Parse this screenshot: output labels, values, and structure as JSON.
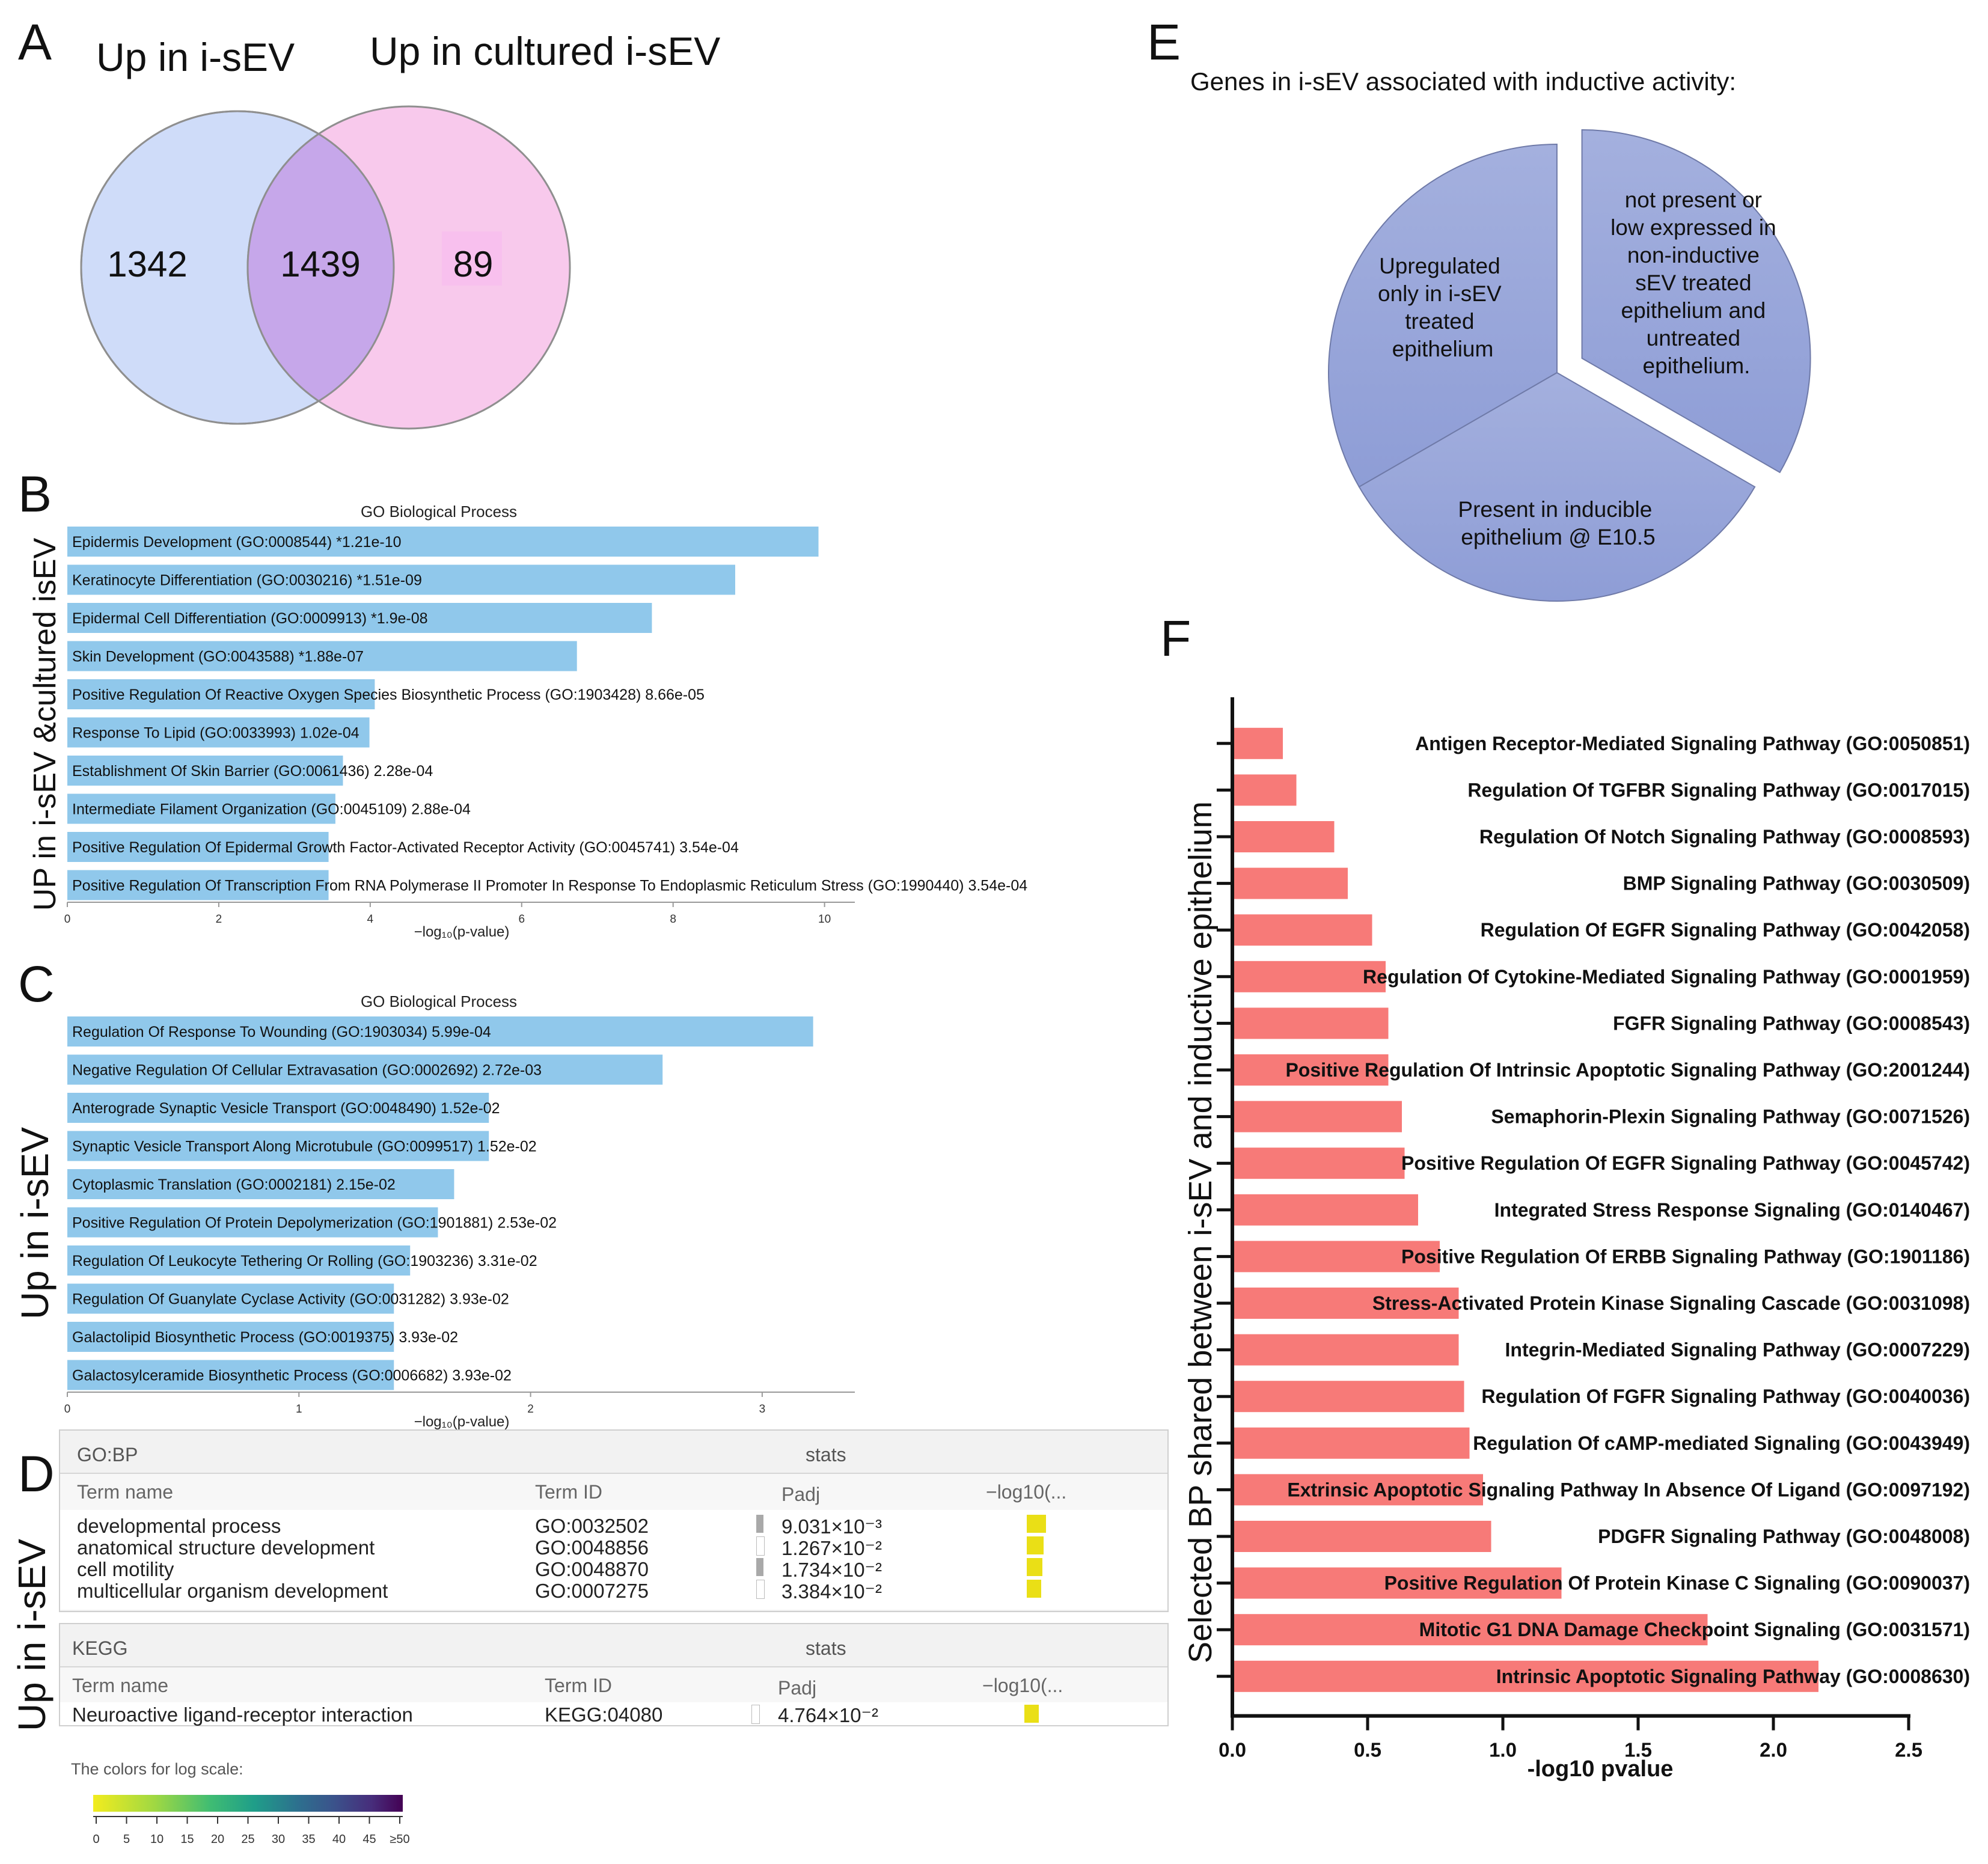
{
  "panel_letters": {
    "A": "A",
    "B": "B",
    "C": "C",
    "D": "D",
    "E": "E",
    "F": "F"
  },
  "colors": {
    "bar_blue": "#90c8eb",
    "bar_red": "#f77a78",
    "venn_left": "#cfdcf9",
    "venn_right": "#f8c9ec",
    "venn_overlap": "#c6a7ea",
    "pie": "#98a6d8"
  },
  "venn": {
    "left_label": "Up in i-sEV",
    "right_label": "Up in cultured i-sEV",
    "left_only": "1342",
    "overlap": "1439",
    "right_only": "89"
  },
  "panel_b": {
    "side_label": "UP in i-sEV &cultured isEV",
    "title": "GO Biological Process",
    "xlabel": "−log₁₀(p-value)",
    "ticks": [
      "0",
      "2",
      "4",
      "6",
      "8",
      "10"
    ],
    "terms": [
      {
        "name": "Epidermis Development (GO:0008544)",
        "p": "*1.21e-10"
      },
      {
        "name": "Keratinocyte Differentiation (GO:0030216)",
        "p": "*1.51e-09"
      },
      {
        "name": "Epidermal Cell Differentiation (GO:0009913)",
        "p": "*1.9e-08"
      },
      {
        "name": "Skin Development (GO:0043588)",
        "p": "*1.88e-07"
      },
      {
        "name": "Positive Regulation Of Reactive Oxygen Species Biosynthetic Process (GO:1903428)",
        "p": "8.66e-05"
      },
      {
        "name": "Response To Lipid (GO:0033993)",
        "p": "1.02e-04"
      },
      {
        "name": "Establishment Of Skin Barrier (GO:0061436)",
        "p": "2.28e-04"
      },
      {
        "name": "Intermediate Filament Organization (GO:0045109)",
        "p": "2.88e-04"
      },
      {
        "name": "Positive Regulation Of Epidermal Growth Factor-Activated Receptor Activity (GO:0045741)",
        "p": "3.54e-04"
      },
      {
        "name": "Positive Regulation Of Transcription From RNA Polymerase II Promoter In Response To Endoplasmic Reticulum Stress (GO:1990440)",
        "p": "3.54e-04"
      }
    ]
  },
  "panel_c": {
    "side_label": "Up in i-sEV",
    "title": "GO Biological Process",
    "xlabel": "−log₁₀(p-value)",
    "ticks": [
      "0",
      "1",
      "2",
      "3"
    ],
    "terms": [
      {
        "name": "Regulation Of Response To Wounding (GO:1903034)",
        "p": "5.99e-04"
      },
      {
        "name": "Negative Regulation Of Cellular Extravasation (GO:0002692)",
        "p": "2.72e-03"
      },
      {
        "name": "Anterograde Synaptic Vesicle Transport (GO:0048490)",
        "p": "1.52e-02"
      },
      {
        "name": "Synaptic Vesicle Transport Along Microtubule (GO:0099517)",
        "p": "1.52e-02"
      },
      {
        "name": "Cytoplasmic Translation (GO:0002181)",
        "p": "2.15e-02"
      },
      {
        "name": "Positive Regulation Of Protein Depolymerization (GO:1901881)",
        "p": "2.53e-02"
      },
      {
        "name": "Regulation Of Leukocyte Tethering Or Rolling (GO:1903236)",
        "p": "3.31e-02"
      },
      {
        "name": "Regulation Of Guanylate Cyclase Activity (GO:0031282)",
        "p": "3.93e-02"
      },
      {
        "name": "Galactolipid Biosynthetic Process (GO:0019375)",
        "p": "3.93e-02"
      },
      {
        "name": "Galactosylceramide Biosynthetic Process (GO:0006682)",
        "p": "3.93e-02"
      }
    ]
  },
  "panel_d": {
    "side_label": "Up in i-sEV",
    "gobp": {
      "source": "GO:BP",
      "stats": "stats",
      "col_term": "Term name",
      "col_id": "Term ID",
      "col_padj": "Padj",
      "col_log": "−log10(...",
      "rows": [
        {
          "term": "developmental process",
          "id": "GO:0032502",
          "padj": "9.031×10⁻³"
        },
        {
          "term": "anatomical structure development",
          "id": "GO:0048856",
          "padj": "1.267×10⁻²"
        },
        {
          "term": "cell motility",
          "id": "GO:0048870",
          "padj": "1.734×10⁻²"
        },
        {
          "term": "multicellular organism development",
          "id": "GO:0007275",
          "padj": "3.384×10⁻²"
        }
      ]
    },
    "kegg": {
      "source": "KEGG",
      "stats": "stats",
      "col_term": "Term name",
      "col_id": "Term ID",
      "col_padj": "Padj",
      "col_log": "−log10(...",
      "rows": [
        {
          "term": "Neuroactive ligand-receptor interaction",
          "id": "KEGG:04080",
          "padj": "4.764×10⁻²"
        }
      ]
    },
    "legend_title": "The colors for log scale:",
    "legend_ticks": [
      "0",
      "5",
      "10",
      "15",
      "20",
      "25",
      "30",
      "35",
      "40",
      "45",
      "≥50"
    ]
  },
  "panel_e": {
    "title": "Genes in i-sEV associated with inductive activity:",
    "slice_left": [
      "Upregulated",
      "only in i-sEV",
      "treated",
      "epithelium"
    ],
    "slice_right": [
      "not present or",
      "low expressed in",
      "non-inductive",
      "sEV treated",
      "epithelium and",
      "untreated",
      "epithelium."
    ],
    "slice_bottom": [
      "Present in inducible",
      "epithelium @ E10.5"
    ]
  },
  "chart_data": [
    {
      "type": "bar",
      "orientation": "horizontal",
      "panel": "B",
      "title": "GO Biological Process",
      "xlabel": "−log₁₀(p-value)",
      "xlim": [
        0,
        10.4
      ],
      "categories": [
        "Epidermis Development (GO:0008544)",
        "Keratinocyte Differentiation (GO:0030216)",
        "Epidermal Cell Differentiation (GO:0009913)",
        "Skin Development (GO:0043588)",
        "Positive Regulation Of Reactive Oxygen Species Biosynthetic Process (GO:1903428)",
        "Response To Lipid (GO:0033993)",
        "Establishment Of Skin Barrier (GO:0061436)",
        "Intermediate Filament Organization (GO:0045109)",
        "Positive Regulation Of Epidermal Growth Factor-Activated Receptor Activity (GO:0045741)",
        "Positive Regulation Of Transcription From RNA Polymerase II Promoter In Response To Endoplasmic Reticulum Stress (GO:1990440)"
      ],
      "values": [
        9.92,
        8.82,
        7.72,
        6.73,
        4.06,
        3.99,
        3.64,
        3.54,
        3.45,
        3.45
      ]
    },
    {
      "type": "bar",
      "orientation": "horizontal",
      "panel": "C",
      "title": "GO Biological Process",
      "xlabel": "−log₁₀(p-value)",
      "xlim": [
        0,
        3.4
      ],
      "categories": [
        "Regulation Of Response To Wounding (GO:1903034)",
        "Negative Regulation Of Cellular Extravasation (GO:0002692)",
        "Anterograde Synaptic Vesicle Transport (GO:0048490)",
        "Synaptic Vesicle Transport Along Microtubule (GO:0099517)",
        "Cytoplasmic Translation (GO:0002181)",
        "Positive Regulation Of Protein Depolymerization (GO:1901881)",
        "Regulation Of Leukocyte Tethering Or Rolling (GO:1903236)",
        "Regulation Of Guanylate Cyclase Activity (GO:0031282)",
        "Galactolipid Biosynthetic Process (GO:0019375)",
        "Galactosylceramide Biosynthetic Process (GO:0006682)"
      ],
      "values": [
        3.22,
        2.57,
        1.82,
        1.82,
        1.67,
        1.6,
        1.48,
        1.41,
        1.41,
        1.41
      ]
    },
    {
      "type": "pie",
      "panel": "E",
      "title": "Genes in i-sEV associated with inductive activity:",
      "categories": [
        "Upregulated only in i-sEV treated epithelium",
        "not present or low expressed in non-inductive sEV treated epithelium and untreated epithelium.",
        "Present in inducible epithelium @ E10.5"
      ],
      "values": [
        33.33,
        33.33,
        33.34
      ],
      "exploded": "not present or low expressed in non-inductive sEV treated epithelium and untreated epithelium."
    },
    {
      "type": "bar",
      "orientation": "horizontal",
      "panel": "F",
      "xlabel": "-log10 pvalue",
      "ylabel": "Selected BP shared between i-sEV and inductive epithelium",
      "xlim": [
        0,
        2.5
      ],
      "ticks": [
        "0.0",
        "0.5",
        "1.0",
        "1.5",
        "2.0",
        "2.5"
      ],
      "categories": [
        "Antigen Receptor-Mediated Signaling Pathway (GO:0050851)",
        "Regulation Of TGFBR Signaling Pathway (GO:0017015)",
        "Regulation Of Notch Signaling Pathway (GO:0008593)",
        "BMP Signaling Pathway (GO:0030509)",
        "Regulation Of EGFR Signaling Pathway (GO:0042058)",
        "Regulation Of Cytokine-Mediated Signaling Pathway (GO:0001959)",
        "FGFR Signaling Pathway (GO:0008543)",
        "Positive Regulation Of Intrinsic Apoptotic Signaling Pathway (GO:2001244)",
        "Semaphorin-Plexin Signaling Pathway (GO:0071526)",
        "Positive Regulation Of EGFR Signaling Pathway (GO:0045742)",
        "Integrated Stress Response Signaling (GO:0140467)",
        "Positive Regulation Of ERBB Signaling Pathway (GO:1901186)",
        "Stress-Activated Protein Kinase Signaling Cascade (GO:0031098)",
        "Integrin-Mediated Signaling Pathway (GO:0007229)",
        "Regulation Of FGFR Signaling Pathway (GO:0040036)",
        "Regulation Of cAMP-mediated Signaling (GO:0043949)",
        "Extrinsic Apoptotic Signaling Pathway In Absence Of Ligand (GO:0097192)",
        "PDGFR Signaling Pathway (GO:0048008)",
        "Positive Regulation Of Protein Kinase C Signaling (GO:0090037)",
        "Mitotic G1 DNA Damage Checkpoint Signaling (GO:0031571)",
        "Intrinsic Apoptotic Signaling Pathway (GO:0008630)"
      ],
      "values": [
        0.18,
        0.23,
        0.37,
        0.42,
        0.51,
        0.56,
        0.57,
        0.57,
        0.62,
        0.63,
        0.68,
        0.76,
        0.83,
        0.83,
        0.85,
        0.87,
        0.92,
        0.95,
        1.21,
        1.75,
        2.16
      ]
    }
  ]
}
